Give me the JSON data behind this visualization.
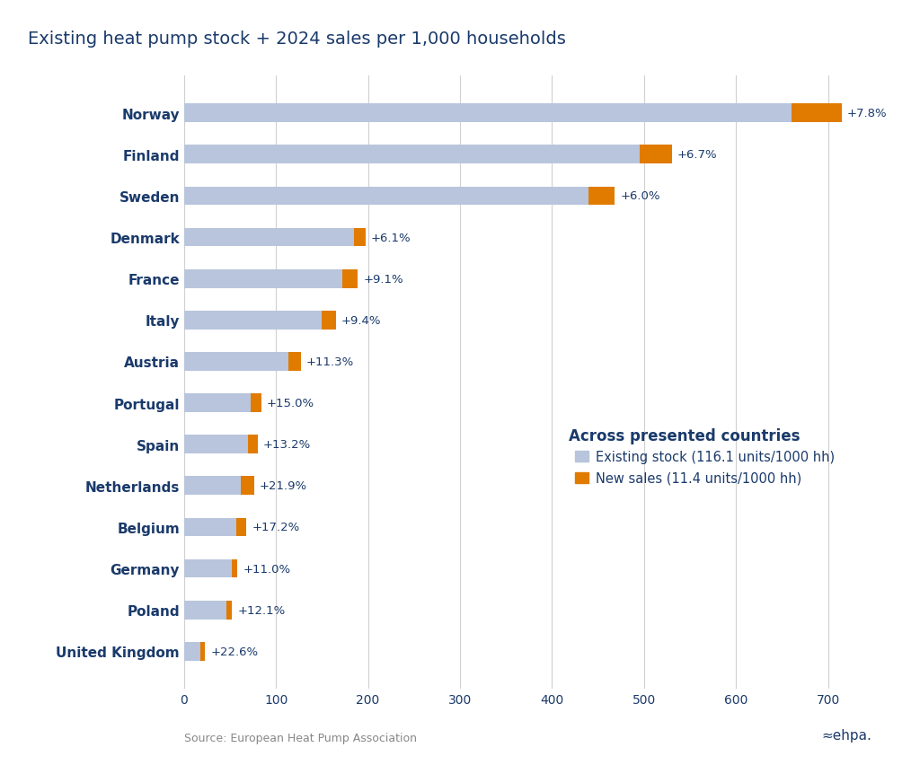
{
  "title": "Existing heat pump stock + 2024 sales per 1,000 households",
  "countries": [
    "Norway",
    "Finland",
    "Sweden",
    "Denmark",
    "France",
    "Italy",
    "Austria",
    "Portugal",
    "Spain",
    "Netherlands",
    "Belgium",
    "Germany",
    "Poland",
    "United Kingdom"
  ],
  "existing_stock": [
    660,
    495,
    440,
    185,
    172,
    150,
    113,
    72,
    70,
    62,
    57,
    52,
    46,
    18
  ],
  "new_sales": [
    55,
    35,
    28,
    12,
    17,
    15,
    14,
    12,
    10,
    14,
    11,
    6,
    6,
    5
  ],
  "pct_labels": [
    "+7.8%",
    "+6.7%",
    "+6.0%",
    "+6.1%",
    "+9.1%",
    "+9.4%",
    "+11.3%",
    "+15.0%",
    "+13.2%",
    "+21.9%",
    "+17.2%",
    "+11.0%",
    "+12.1%",
    "+22.6%"
  ],
  "stock_color": "#b8c5dc",
  "sales_color": "#e07b00",
  "background_color": "#ffffff",
  "text_color": "#1a3a6b",
  "source_text": "Source: European Heat Pump Association",
  "legend_title": "Across presented countries",
  "legend_stock": "Existing stock (116.1 units/1000 hh)",
  "legend_sales": "New sales (11.4 units/1000 hh)",
  "xlim": [
    0,
    760
  ],
  "xticks": [
    0,
    100,
    200,
    300,
    400,
    500,
    600,
    700
  ]
}
